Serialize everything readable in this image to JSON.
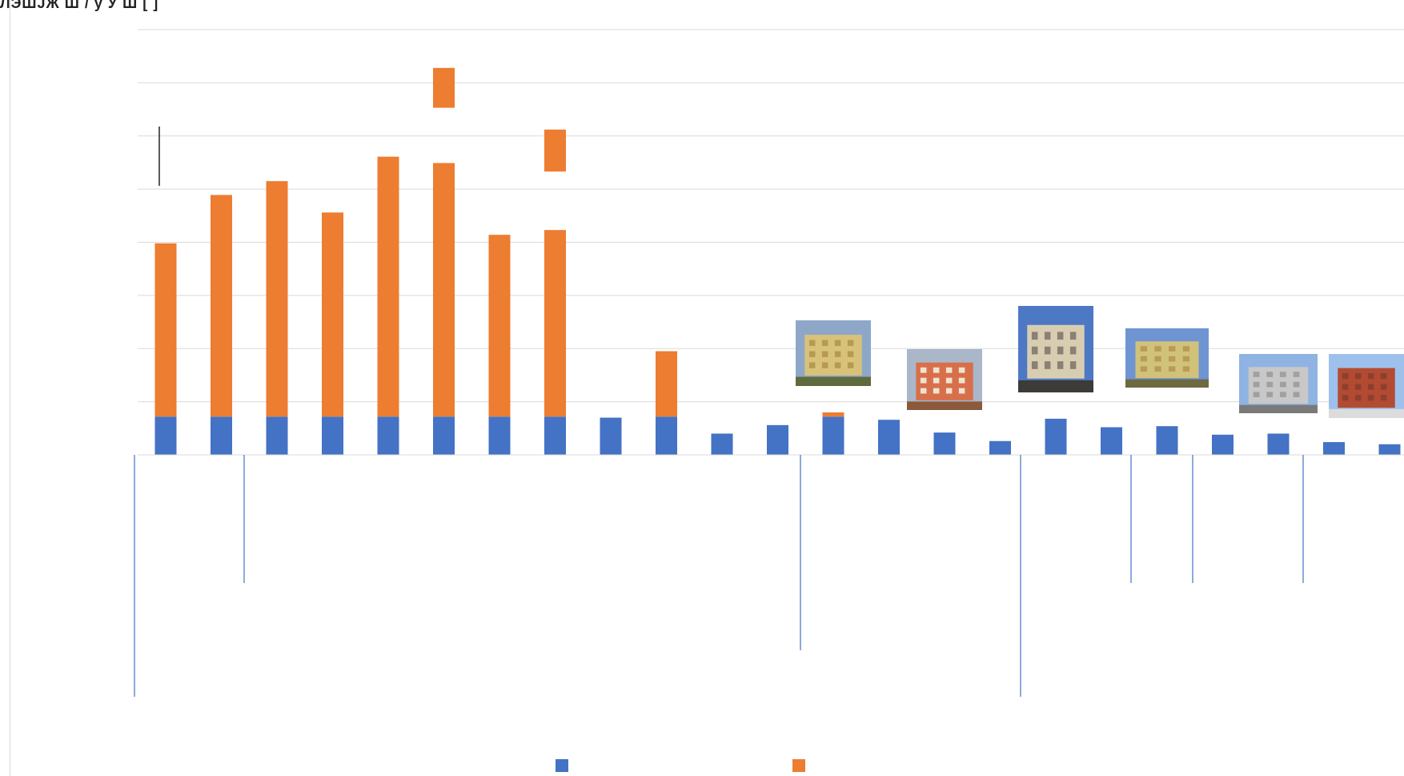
{
  "header": {
    "title_fragment": "ЛЭШЈЖ Ш /  у Ў Ш [  ]"
  },
  "chart_data": {
    "type": "bar",
    "stacked": true,
    "grid": true,
    "ylim": [
      0,
      8
    ],
    "categories": [
      "",
      "",
      "",
      "",
      "",
      "",
      "",
      "",
      "",
      "",
      "",
      "",
      "",
      "",
      "",
      "",
      "",
      "",
      "",
      "",
      "",
      "",
      "",
      ""
    ],
    "series": [
      {
        "color": "#4472c4",
        "values": [
          0.72,
          0.72,
          0.72,
          0.72,
          0.72,
          0.72,
          0.72,
          0.72,
          0.7,
          0.72,
          0.4,
          0.56,
          0.72,
          0.66,
          0.42,
          0.26,
          0.68,
          0.52,
          0.54,
          0.38,
          0.4,
          0.24,
          0.2,
          0
        ]
      },
      {
        "color": "#ed7d31",
        "values": [
          3.26,
          4.17,
          4.43,
          3.84,
          4.89,
          4.77,
          3.42,
          3.51,
          0,
          1.23,
          0,
          0,
          0.08,
          0,
          0,
          0,
          0,
          0,
          0,
          0,
          0,
          0,
          0,
          0
        ]
      }
    ],
    "extra_segments": [
      {
        "bar": 5,
        "bottom": 6.53,
        "top": 7.28,
        "color": "#ed7d31"
      },
      {
        "bar": 7,
        "bottom": 5.33,
        "top": 6.12,
        "color": "#ed7d31"
      }
    ],
    "photos": [
      {
        "bar": 12,
        "palette": [
          "#8ea7c9",
          "#d8c27a",
          "#b79a52",
          "#5f6b3d"
        ]
      },
      {
        "bar": 14,
        "palette": [
          "#a9b7c9",
          "#d86f4b",
          "#efe3cf",
          "#8b5a3c"
        ]
      },
      {
        "bar": 16,
        "palette": [
          "#4d78c4",
          "#d9cdb1",
          "#8a8174",
          "#3c3b38"
        ]
      },
      {
        "bar": 18,
        "palette": [
          "#6f94d2",
          "#d1c27a",
          "#b89b56",
          "#6d6a40"
        ]
      },
      {
        "bar": 20,
        "palette": [
          "#8fb3e2",
          "#c8c8c8",
          "#a0a0a0",
          "#7a7a7a"
        ]
      },
      {
        "bar": 22,
        "palette": [
          "#9ec0ec",
          "#b24b32",
          "#8d3f2f",
          "#dcdcdc"
        ]
      }
    ],
    "legend": {
      "placement": "bottom",
      "entries": [
        {
          "color": "#4472c4"
        },
        {
          "color": "#ed7d31"
        }
      ]
    }
  }
}
